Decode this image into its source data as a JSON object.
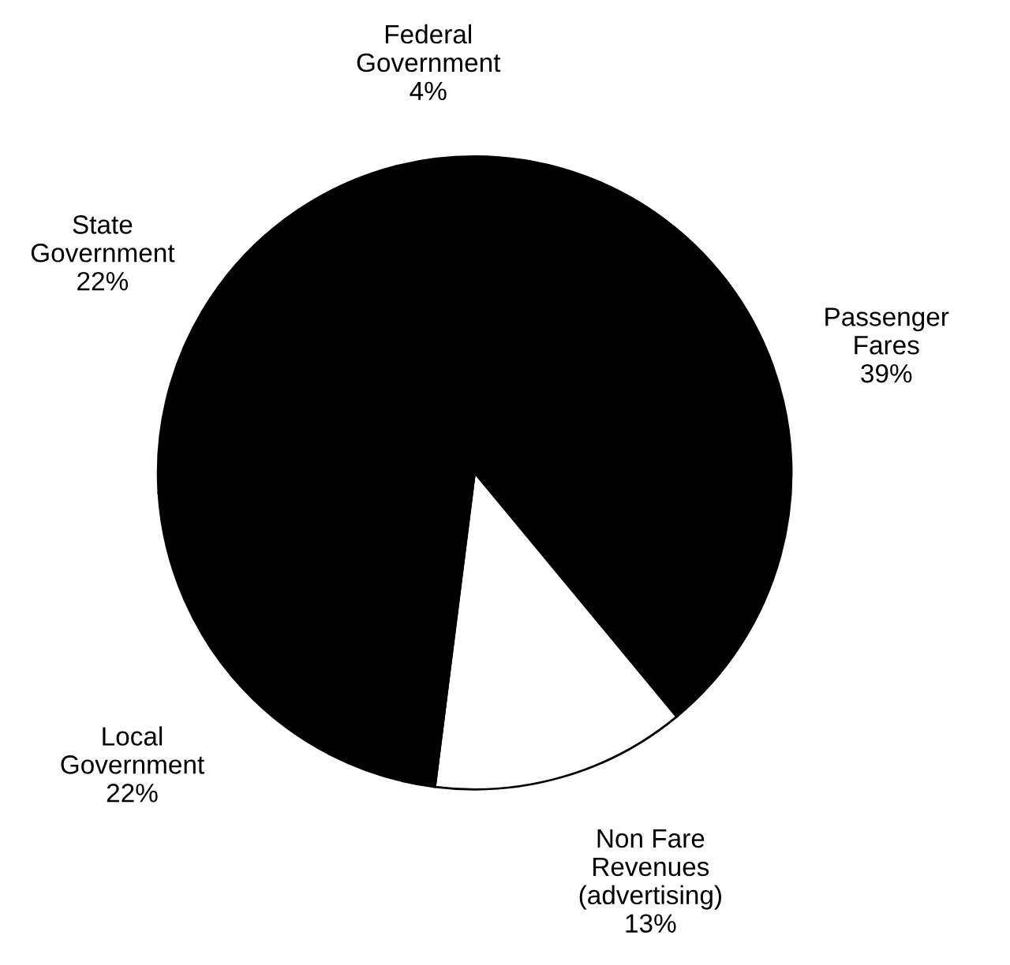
{
  "chart_data": {
    "type": "pie",
    "categories": [
      "Passenger\nFares",
      "Non Fare\nRevenues\n(advertising)",
      "Local\nGovernment",
      "State\nGovernment",
      "Federal\nGovernment"
    ],
    "values": [
      39,
      13,
      22,
      22,
      4
    ],
    "value_labels": [
      "39%",
      "13%",
      "22%",
      "22%",
      "4%"
    ],
    "colors": [
      "#000000",
      "#ffffff",
      "#000000",
      "#000000",
      "#000000"
    ],
    "legend": false
  }
}
